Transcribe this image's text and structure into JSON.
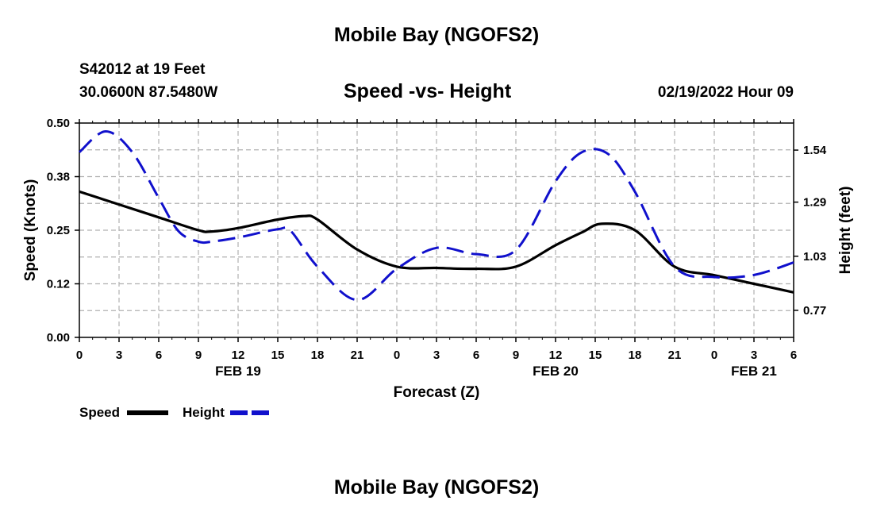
{
  "header": {
    "title": "Mobile Bay (NGOFS2)",
    "station_line": "S42012 at 19 Feet",
    "coords_line": "30.0600N  87.5480W",
    "subtitle": "Speed -vs- Height",
    "datetime": "02/19/2022 Hour 09"
  },
  "footer": {
    "title": "Mobile Bay (NGOFS2)"
  },
  "legend": {
    "speed_label": "Speed",
    "height_label": "Height"
  },
  "colors": {
    "speed": "#000000",
    "height": "#1010cc",
    "grid": "#b0b0b0"
  },
  "chart_data": {
    "type": "line",
    "title": "Speed -vs- Height",
    "xlabel": "Forecast (Z)",
    "ylabel": "Speed (Knots)",
    "y2label": "Height (feet)",
    "xlim": [
      0,
      54
    ],
    "ylim": [
      0,
      0.5
    ],
    "y2lim": [
      0.64,
      1.67
    ],
    "x_ticks": [
      0,
      3,
      6,
      9,
      12,
      15,
      18,
      21,
      24,
      27,
      30,
      33,
      36,
      39,
      42,
      45,
      48,
      51,
      54
    ],
    "x_tick_labels": [
      "0",
      "3",
      "6",
      "9",
      "12",
      "15",
      "18",
      "21",
      "0",
      "3",
      "6",
      "9",
      "12",
      "15",
      "18",
      "21",
      "0",
      "3",
      "6"
    ],
    "date_labels": [
      {
        "x": 12,
        "label": "FEB 19"
      },
      {
        "x": 36,
        "label": "FEB 20"
      },
      {
        "x": 51,
        "label": "FEB 21"
      }
    ],
    "y_ticks": [
      0,
      0.125,
      0.25,
      0.375,
      0.5
    ],
    "y_tick_labels": [
      "0.00",
      "0.12",
      "0.25",
      "0.38",
      "0.50"
    ],
    "y2_ticks": [
      0.77,
      1.03,
      1.29,
      1.54
    ],
    "y2_tick_labels": [
      "0.77",
      "1.03",
      "1.29",
      "1.54"
    ],
    "series": [
      {
        "name": "Speed",
        "axis": "left",
        "style": "solid",
        "x": [
          0,
          3,
          6,
          9,
          10,
          12,
          15,
          17,
          18,
          21,
          24,
          27,
          30,
          33,
          36,
          38,
          39.5,
          42,
          45,
          48,
          51,
          54
        ],
        "values": [
          0.34,
          0.31,
          0.28,
          0.25,
          0.247,
          0.255,
          0.275,
          0.283,
          0.275,
          0.205,
          0.165,
          0.162,
          0.16,
          0.165,
          0.215,
          0.245,
          0.265,
          0.25,
          0.165,
          0.145,
          0.125,
          0.105
        ]
      },
      {
        "name": "Height",
        "axis": "right",
        "style": "dashed",
        "x": [
          0,
          2,
          4,
          6,
          7.5,
          9,
          10,
          12,
          15,
          16,
          18,
          21,
          24,
          27,
          30,
          33,
          36,
          38,
          40,
          42,
          45,
          48,
          51,
          54
        ],
        "values": [
          1.53,
          1.63,
          1.53,
          1.31,
          1.15,
          1.1,
          1.1,
          1.12,
          1.16,
          1.15,
          0.98,
          0.82,
          0.97,
          1.07,
          1.04,
          1.06,
          1.39,
          1.53,
          1.52,
          1.34,
          0.98,
          0.93,
          0.94,
          1.0
        ]
      }
    ]
  }
}
